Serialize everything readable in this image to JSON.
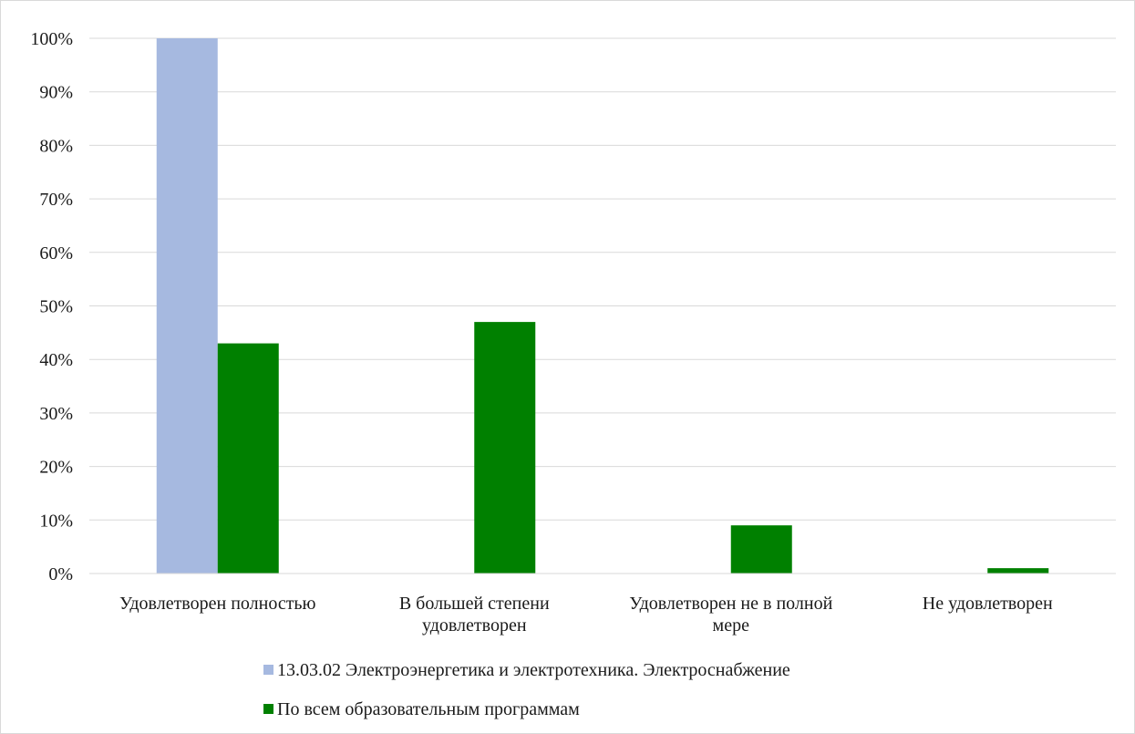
{
  "chart_data": {
    "type": "bar",
    "categories": [
      [
        "Удовлетворен полностью"
      ],
      [
        "В большей степени",
        "удовлетворен"
      ],
      [
        "Удовлетворен не в полной",
        "мере"
      ],
      [
        "Не удовлетворен"
      ]
    ],
    "series": [
      {
        "name": "13.03.02 Электроэнергетика и электротехника. Электроснабжение",
        "color": "#a6b9e0",
        "values": [
          100,
          0,
          0,
          0
        ]
      },
      {
        "name": "По всем образовательным программам",
        "color": "#008000",
        "values": [
          43,
          47,
          9,
          1
        ]
      }
    ],
    "ylim": [
      0,
      100
    ],
    "yticks": [
      "0%",
      "10%",
      "20%",
      "30%",
      "40%",
      "50%",
      "60%",
      "70%",
      "80%",
      "90%",
      "100%"
    ],
    "grid": true,
    "legend_position": "bottom",
    "title": "",
    "xlabel": "",
    "ylabel": ""
  }
}
